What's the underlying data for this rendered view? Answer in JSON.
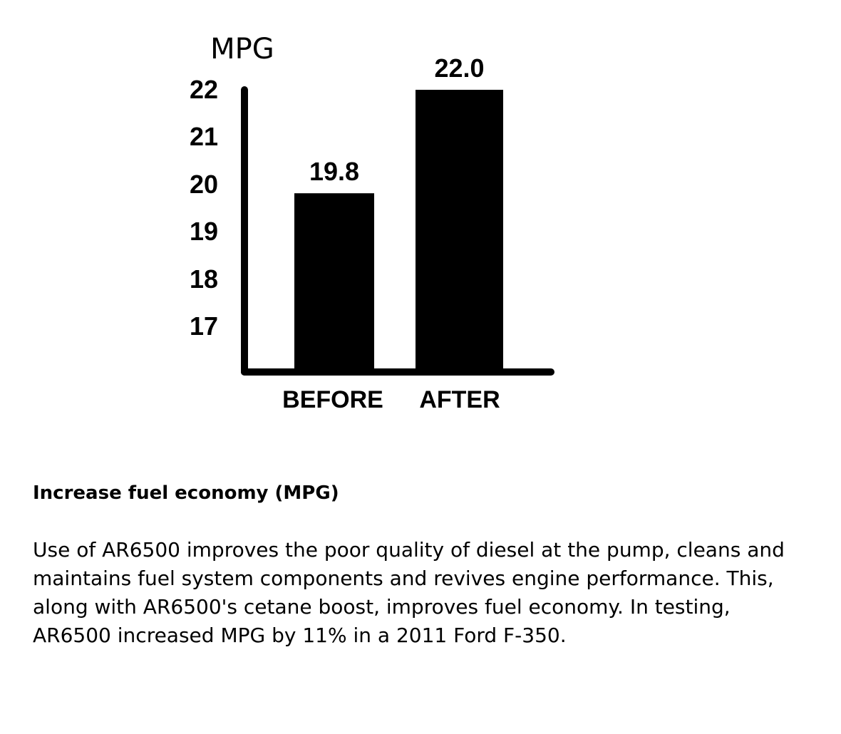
{
  "chart_data": {
    "type": "bar",
    "ylabel": "MPG",
    "xlabel": "",
    "categories": [
      "BEFORE",
      "AFTER"
    ],
    "values": [
      19.8,
      22.0
    ],
    "data_labels": [
      "19.8",
      "22.0"
    ],
    "yticks": [
      22,
      21,
      20,
      19,
      18,
      17
    ],
    "ylim": [
      16,
      22
    ],
    "grid": false,
    "bar_color": "#000000"
  },
  "section": {
    "heading": "Increase fuel economy (MPG)",
    "body": "Use of AR6500 improves the poor quality of diesel at the pump, cleans and maintains fuel system components and revives engine performance. This, along with AR6500's cetane boost, improves fuel economy. In testing, AR6500 increased MPG by 11% in a 2011 Ford F-350."
  }
}
